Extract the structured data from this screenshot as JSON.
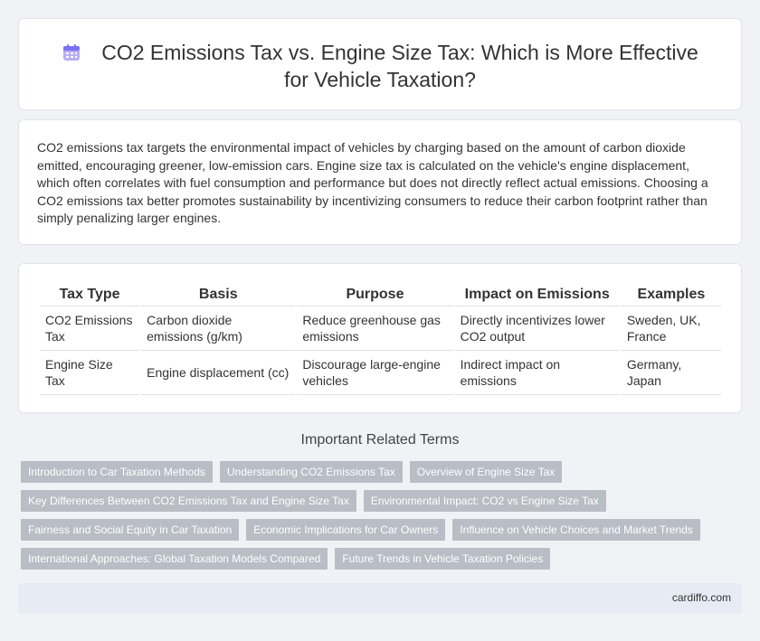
{
  "header": {
    "title": "CO2 Emissions Tax vs. Engine Size Tax: Which is More Effective for Vehicle Taxation?",
    "icon": "calendar-icon"
  },
  "description": "CO2 emissions tax targets the environmental impact of vehicles by charging based on the amount of carbon dioxide emitted, encouraging greener, low-emission cars. Engine size tax is calculated on the vehicle's engine displacement, which often correlates with fuel consumption and performance but does not directly reflect actual emissions. Choosing a CO2 emissions tax better promotes sustainability by incentivizing consumers to reduce their carbon footprint rather than simply penalizing larger engines.",
  "table": {
    "headers": [
      "Tax Type",
      "Basis",
      "Purpose",
      "Impact on Emissions",
      "Examples"
    ],
    "rows": [
      [
        "CO2 Emissions Tax",
        "Carbon dioxide emissions (g/km)",
        "Reduce greenhouse gas emissions",
        "Directly incentivizes lower CO2 output",
        "Sweden, UK, France"
      ],
      [
        "Engine Size Tax",
        "Engine displacement (cc)",
        "Discourage large-engine vehicles",
        "Indirect impact on emissions",
        "Germany, Japan"
      ]
    ]
  },
  "related": {
    "title": "Important Related Terms",
    "rows": [
      [
        "Introduction to Car Taxation Methods",
        "Understanding CO2 Emissions Tax",
        "Overview of Engine Size Tax"
      ],
      [
        "Key Differences Between CO2 Emissions Tax and Engine Size Tax",
        "Environmental Impact: CO2 vs Engine Size Tax"
      ],
      [
        "Fairness and Social Equity in Car Taxation",
        "Economic Implications for Car Owners",
        "Influence on Vehicle Choices and Market Trends"
      ],
      [
        "International Approaches: Global Taxation Models Compared",
        "Future Trends in Vehicle Taxation Policies"
      ]
    ]
  },
  "footer": {
    "text": "cardiffo.com"
  },
  "colors": {
    "background": "#f1f2f6",
    "tag": "#b9bdc5",
    "footer": "#e7ebf3",
    "icon": "#8a7cf0"
  }
}
